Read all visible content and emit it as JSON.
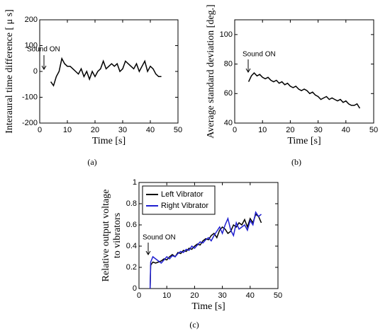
{
  "chart_data": [
    {
      "type": "line",
      "caption": "(a)",
      "xlabel": "Time [s]",
      "ylabel": [
        "Interaural time difference [ μ s]"
      ],
      "annotation": "Sound ON",
      "xlim": [
        0,
        50
      ],
      "xticks": [
        0,
        10,
        20,
        30,
        40,
        50
      ],
      "ylim": [
        -200,
        200
      ],
      "yticks": [
        -200,
        -100,
        0,
        100,
        200
      ],
      "series": [
        {
          "color": "#000000",
          "x": [
            4,
            5,
            6,
            7,
            8,
            9,
            10,
            11,
            12,
            13,
            14,
            15,
            16,
            17,
            18,
            19,
            20,
            21,
            22,
            23,
            24,
            25,
            26,
            27,
            28,
            29,
            30,
            31,
            32,
            33,
            34,
            35,
            36,
            37,
            38,
            39,
            40,
            41,
            42,
            43,
            44
          ],
          "values": [
            -40,
            -55,
            -20,
            0,
            50,
            30,
            20,
            20,
            10,
            0,
            -10,
            10,
            -20,
            0,
            -30,
            0,
            -20,
            0,
            10,
            40,
            10,
            20,
            30,
            20,
            30,
            0,
            10,
            40,
            30,
            20,
            10,
            30,
            0,
            20,
            40,
            0,
            20,
            10,
            -10,
            -20,
            -20
          ]
        }
      ]
    },
    {
      "type": "line",
      "caption": "(b)",
      "xlabel": "Time [s]",
      "ylabel": [
        "Average  standard  deviation  [deg.]"
      ],
      "annotation": "Sound ON",
      "xlim": [
        0,
        50
      ],
      "xticks": [
        0,
        10,
        20,
        30,
        40,
        50
      ],
      "ylim": [
        40,
        110
      ],
      "yticks": [
        40,
        60,
        80,
        100
      ],
      "series": [
        {
          "color": "#000000",
          "x": [
            5,
            6,
            7,
            8,
            9,
            10,
            11,
            12,
            13,
            14,
            15,
            16,
            17,
            18,
            19,
            20,
            21,
            22,
            23,
            24,
            25,
            26,
            27,
            28,
            29,
            30,
            31,
            32,
            33,
            34,
            35,
            36,
            37,
            38,
            39,
            40,
            41,
            42,
            43,
            44,
            45
          ],
          "values": [
            68,
            72,
            74,
            72,
            73,
            71,
            70,
            71,
            69,
            68,
            69,
            67,
            68,
            66,
            67,
            65,
            64,
            65,
            63,
            62,
            63,
            62,
            60,
            61,
            59,
            58,
            56,
            57,
            58,
            56,
            57,
            56,
            55,
            56,
            54,
            55,
            53,
            52,
            52,
            53,
            50
          ]
        }
      ]
    },
    {
      "type": "line",
      "caption": "(c)",
      "xlabel": "Time [s]",
      "ylabel": [
        "Relative output voltage",
        "to vibrators"
      ],
      "annotation": "Sound ON",
      "xlim": [
        0,
        50
      ],
      "xticks": [
        0,
        10,
        20,
        30,
        40,
        50
      ],
      "ylim": [
        0,
        1
      ],
      "yticks": [
        0,
        0.2,
        0.4,
        0.6,
        0.8,
        1
      ],
      "legend": "upper left",
      "series": [
        {
          "name": "Left   Vibrator",
          "color": "#000000",
          "x": [
            4,
            4.2,
            5,
            6,
            7,
            8,
            9,
            10,
            11,
            12,
            13,
            14,
            15,
            16,
            17,
            18,
            19,
            20,
            21,
            22,
            23,
            24,
            25,
            26,
            27,
            28,
            29,
            30,
            31,
            32,
            33,
            34,
            35,
            36,
            37,
            38,
            39,
            40,
            41,
            42,
            43,
            44
          ],
          "values": [
            0,
            0.22,
            0.25,
            0.24,
            0.25,
            0.26,
            0.28,
            0.27,
            0.3,
            0.32,
            0.3,
            0.34,
            0.33,
            0.36,
            0.35,
            0.38,
            0.37,
            0.4,
            0.42,
            0.41,
            0.45,
            0.47,
            0.46,
            0.5,
            0.52,
            0.48,
            0.55,
            0.58,
            0.56,
            0.52,
            0.54,
            0.6,
            0.58,
            0.62,
            0.6,
            0.65,
            0.58,
            0.66,
            0.62,
            0.7,
            0.68,
            0.62
          ]
        },
        {
          "name": "Right   Vibrator",
          "color": "#1f1fd0",
          "x": [
            4,
            4.2,
            5,
            6,
            7,
            8,
            9,
            10,
            11,
            12,
            13,
            14,
            15,
            16,
            17,
            18,
            19,
            20,
            21,
            22,
            23,
            24,
            25,
            26,
            27,
            28,
            29,
            30,
            31,
            32,
            33,
            34,
            35,
            36,
            37,
            38,
            39,
            40,
            41,
            42,
            43,
            44
          ],
          "values": [
            0,
            0.25,
            0.3,
            0.28,
            0.26,
            0.24,
            0.27,
            0.3,
            0.28,
            0.31,
            0.3,
            0.33,
            0.35,
            0.34,
            0.37,
            0.36,
            0.4,
            0.38,
            0.41,
            0.44,
            0.43,
            0.46,
            0.48,
            0.45,
            0.5,
            0.54,
            0.58,
            0.52,
            0.6,
            0.66,
            0.55,
            0.5,
            0.62,
            0.56,
            0.58,
            0.6,
            0.55,
            0.64,
            0.6,
            0.72,
            0.68,
            0.7
          ]
        }
      ]
    }
  ]
}
